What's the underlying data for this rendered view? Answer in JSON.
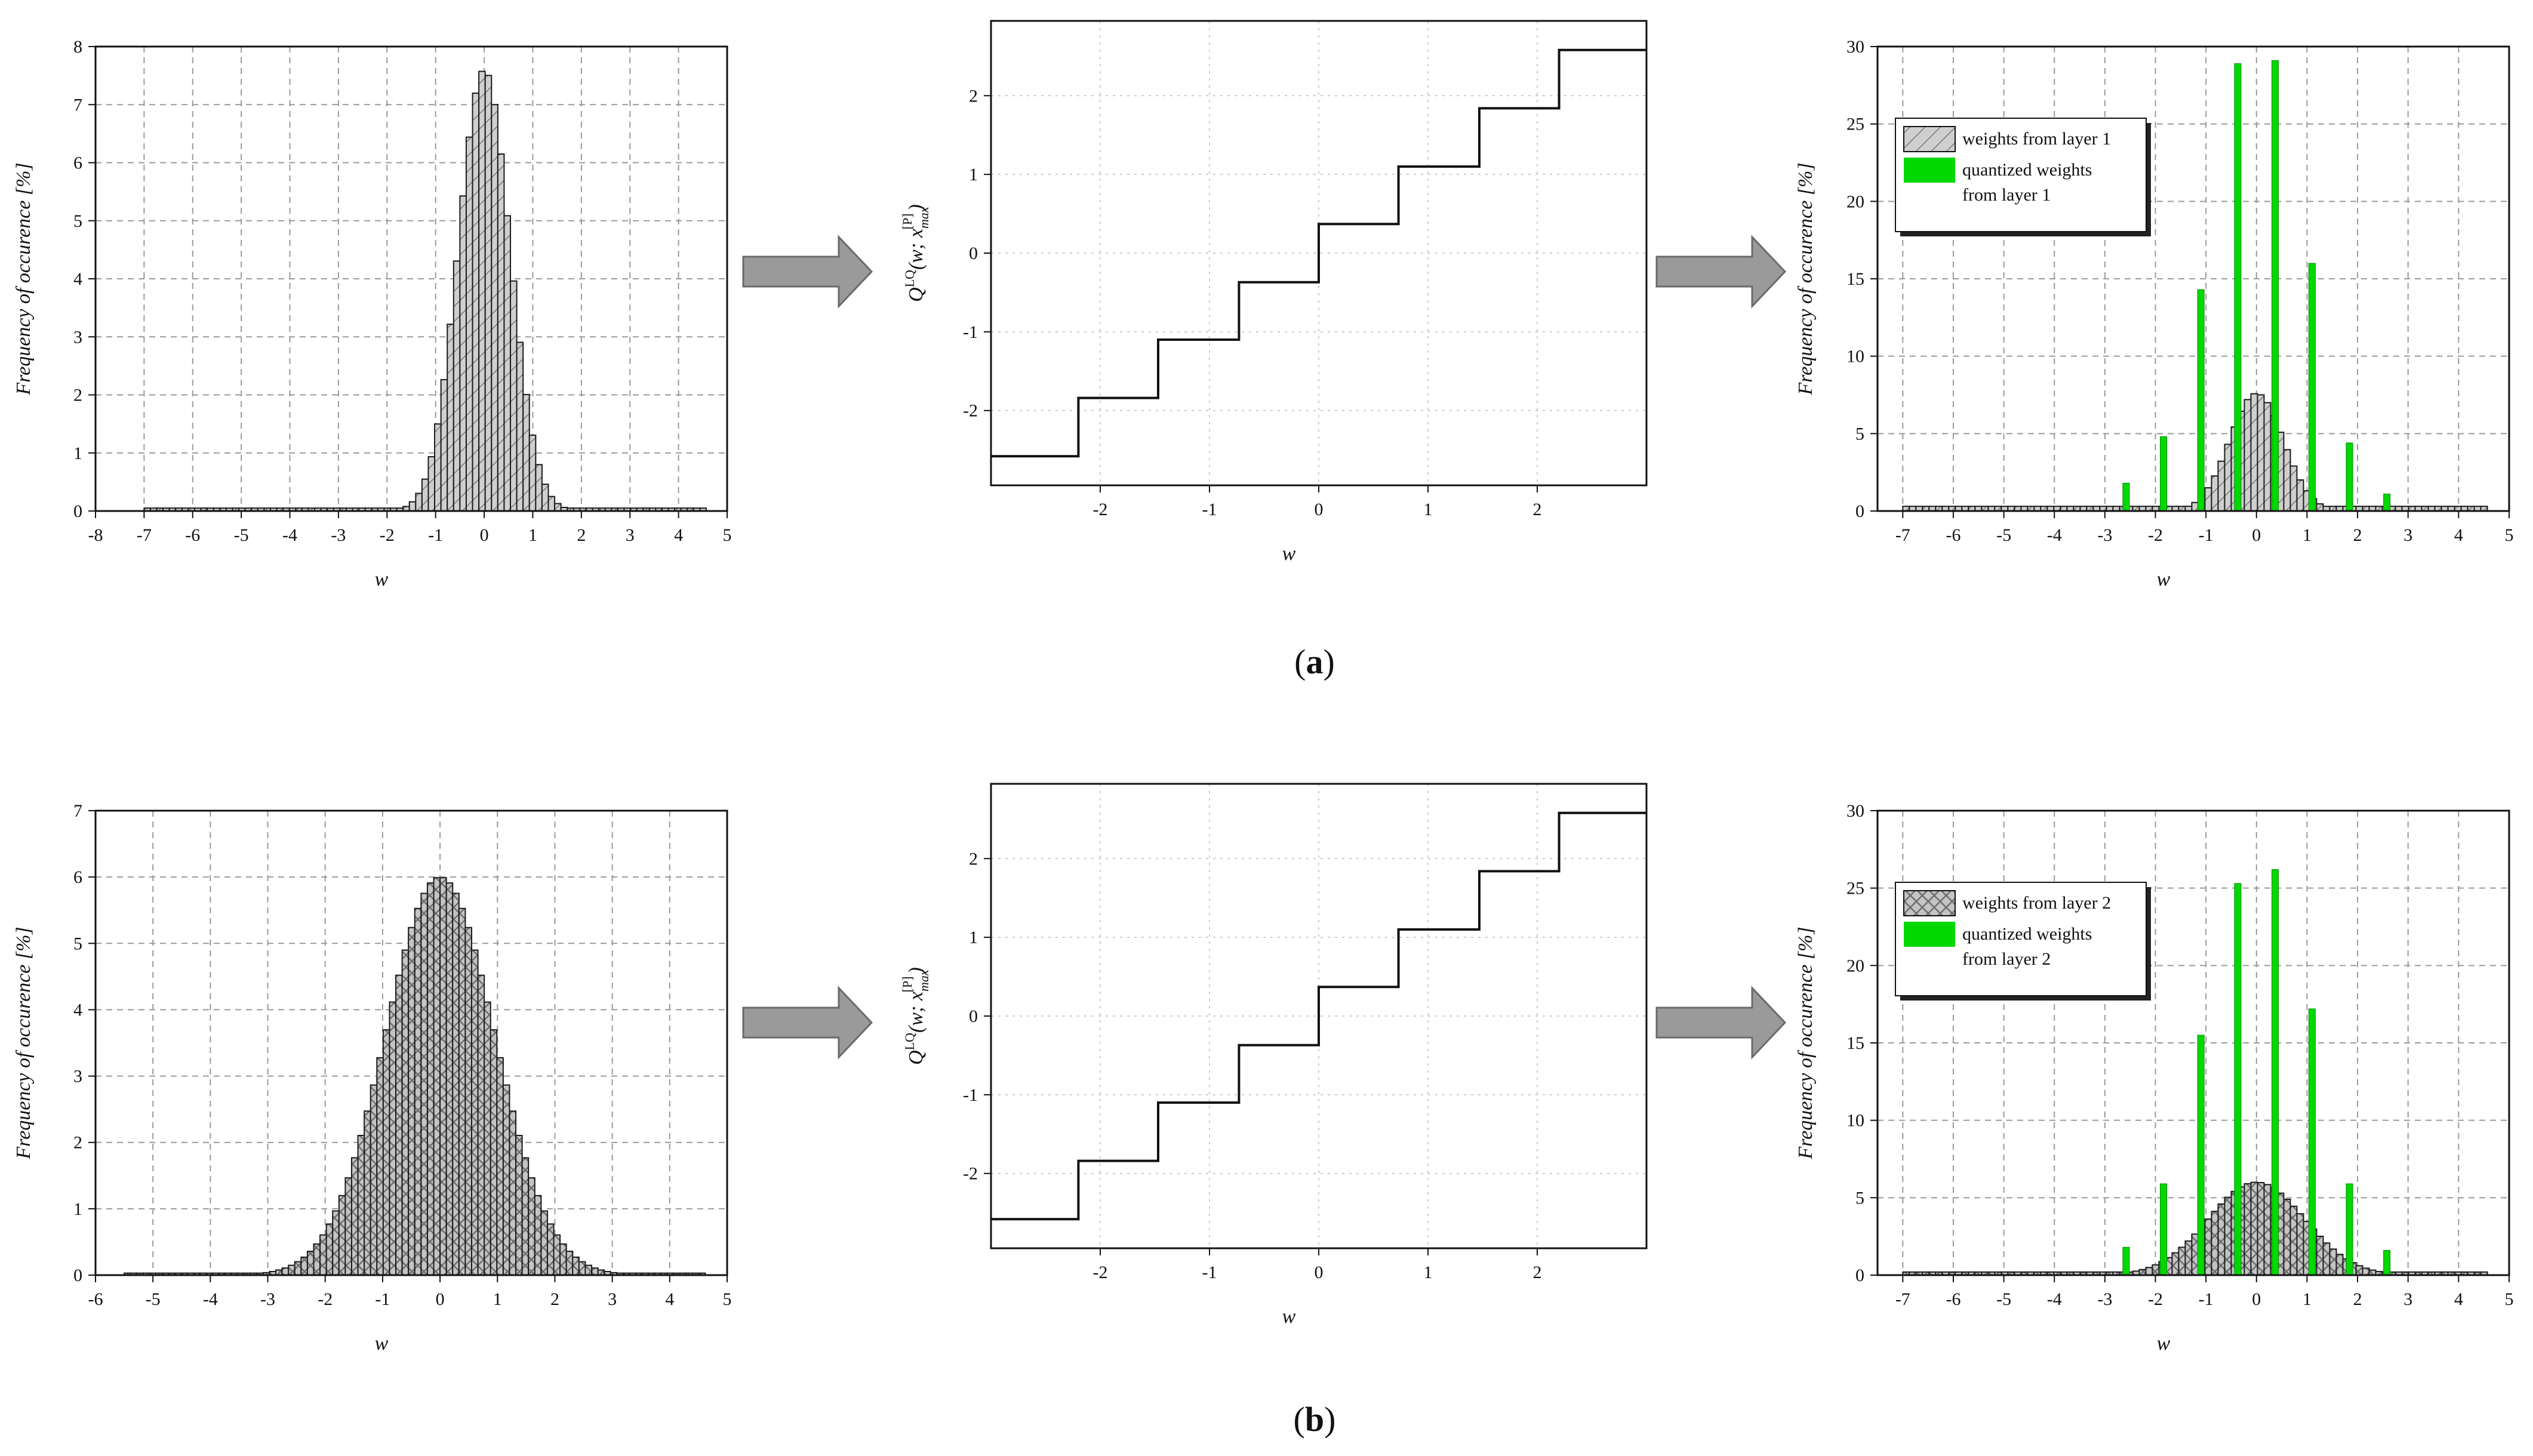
{
  "colors": {
    "gauss_fill": "#c8c8c8",
    "gauss_stroke": "#1a1a1a",
    "quant_green": "#00d800",
    "arrow_fill": "#9a9a9a",
    "arrow_stroke": "#6a6a6a",
    "grid": "#9a9a9a"
  },
  "captions": [
    "a",
    "b"
  ],
  "chart_data": [
    {
      "id": "a-hist",
      "type": "bar",
      "xlabel": "w",
      "ylabel": "Frequency of occurence [%]",
      "xlim": [
        -8,
        5
      ],
      "ylim": [
        0,
        8
      ],
      "xticks": [
        -8,
        -7,
        -6,
        -5,
        -4,
        -3,
        -2,
        -1,
        0,
        1,
        2,
        3,
        4,
        5
      ],
      "yticks": [
        0,
        1,
        2,
        3,
        4,
        5,
        6,
        7,
        8
      ],
      "grid": true,
      "series": [
        {
          "kind": "gaussian-histogram",
          "mean": 0.0,
          "sigma": 0.53,
          "peak": 7.6,
          "x_range": [
            -7.0,
            4.5
          ],
          "bin_width": 0.13,
          "tail_floor": 0.05
        }
      ]
    },
    {
      "id": "a-quantizer",
      "type": "line",
      "xlabel": "w",
      "ylabel": "Q(w; x_max)",
      "xlim": [
        -3,
        3
      ],
      "ylim": [
        -2.95,
        2.95
      ],
      "xticks": [
        -2,
        -1,
        0,
        1,
        2
      ],
      "yticks": [
        -2,
        -1,
        0,
        1,
        2
      ],
      "grid": true,
      "series": [
        {
          "kind": "step",
          "thresholds": [
            -2.2,
            -1.47,
            -0.73,
            0,
            0.73,
            1.47,
            2.2
          ],
          "levels": [
            -2.58,
            -1.84,
            -1.1,
            -0.37,
            0.37,
            1.1,
            1.84,
            2.58
          ]
        }
      ]
    },
    {
      "id": "a-overlay",
      "type": "bar",
      "xlabel": "w",
      "ylabel": "Frequency of occurence [%]",
      "xlim": [
        -7.5,
        5
      ],
      "ylim": [
        0,
        30
      ],
      "xticks": [
        -7,
        -6,
        -5,
        -4,
        -3,
        -2,
        -1,
        0,
        1,
        2,
        3,
        4,
        5
      ],
      "yticks": [
        0,
        5,
        10,
        15,
        20,
        25,
        30
      ],
      "grid": true,
      "legend_position": "top-left",
      "series": [
        {
          "name": "weights from layer 1",
          "kind": "gaussian-histogram",
          "mean": 0.0,
          "sigma": 0.53,
          "peak": 7.6,
          "x_range": [
            -7.0,
            4.5
          ],
          "bin_width": 0.13,
          "tail_floor": 0.3
        },
        {
          "name": "quantized weights from layer 1",
          "kind": "bars",
          "x": [
            -2.58,
            -1.84,
            -1.1,
            -0.37,
            0.37,
            1.1,
            1.84,
            2.58
          ],
          "y": [
            1.8,
            4.8,
            14.3,
            28.9,
            29.1,
            16.0,
            4.4,
            1.1
          ]
        }
      ]
    },
    {
      "id": "b-hist",
      "type": "bar",
      "xlabel": "w",
      "ylabel": "Frequency of occurence [%]",
      "xlim": [
        -6,
        5
      ],
      "ylim": [
        0,
        7
      ],
      "xticks": [
        -6,
        -5,
        -4,
        -3,
        -2,
        -1,
        0,
        1,
        2,
        3,
        4,
        5
      ],
      "yticks": [
        0,
        1,
        2,
        3,
        4,
        5,
        6,
        7
      ],
      "grid": true,
      "series": [
        {
          "kind": "gaussian-histogram",
          "mean": 0.0,
          "sigma": 0.95,
          "peak": 6.0,
          "x_range": [
            -5.5,
            4.6
          ],
          "bin_width": 0.11,
          "tail_floor": 0.03
        }
      ]
    },
    {
      "id": "b-quantizer",
      "type": "line",
      "xlabel": "w",
      "ylabel": "Q(w; x_max)",
      "xlim": [
        -3,
        3
      ],
      "ylim": [
        -2.95,
        2.95
      ],
      "xticks": [
        -2,
        -1,
        0,
        1,
        2
      ],
      "yticks": [
        -2,
        -1,
        0,
        1,
        2
      ],
      "grid": true,
      "series": [
        {
          "kind": "step",
          "thresholds": [
            -2.2,
            -1.47,
            -0.73,
            0,
            0.73,
            1.47,
            2.2
          ],
          "levels": [
            -2.58,
            -1.84,
            -1.1,
            -0.37,
            0.37,
            1.1,
            1.84,
            2.58
          ]
        }
      ]
    },
    {
      "id": "b-overlay",
      "type": "bar",
      "xlabel": "w",
      "ylabel": "Frequency of occurence [%]",
      "xlim": [
        -7.5,
        5
      ],
      "ylim": [
        0,
        30
      ],
      "xticks": [
        -7,
        -6,
        -5,
        -4,
        -3,
        -2,
        -1,
        0,
        1,
        2,
        3,
        4,
        5
      ],
      "yticks": [
        0,
        5,
        10,
        15,
        20,
        25,
        30
      ],
      "grid": true,
      "legend_position": "top-left",
      "series": [
        {
          "name": "weights from layer 2",
          "kind": "gaussian-histogram",
          "mean": 0.0,
          "sigma": 0.95,
          "peak": 6.0,
          "x_range": [
            -7.0,
            4.5
          ],
          "bin_width": 0.13,
          "tail_floor": 0.2
        },
        {
          "name": "quantized weights from layer 2",
          "kind": "bars",
          "x": [
            -2.58,
            -1.84,
            -1.1,
            -0.37,
            0.37,
            1.1,
            1.84,
            2.58
          ],
          "y": [
            1.8,
            5.9,
            15.5,
            25.3,
            26.2,
            17.2,
            5.9,
            1.6
          ]
        }
      ]
    }
  ]
}
